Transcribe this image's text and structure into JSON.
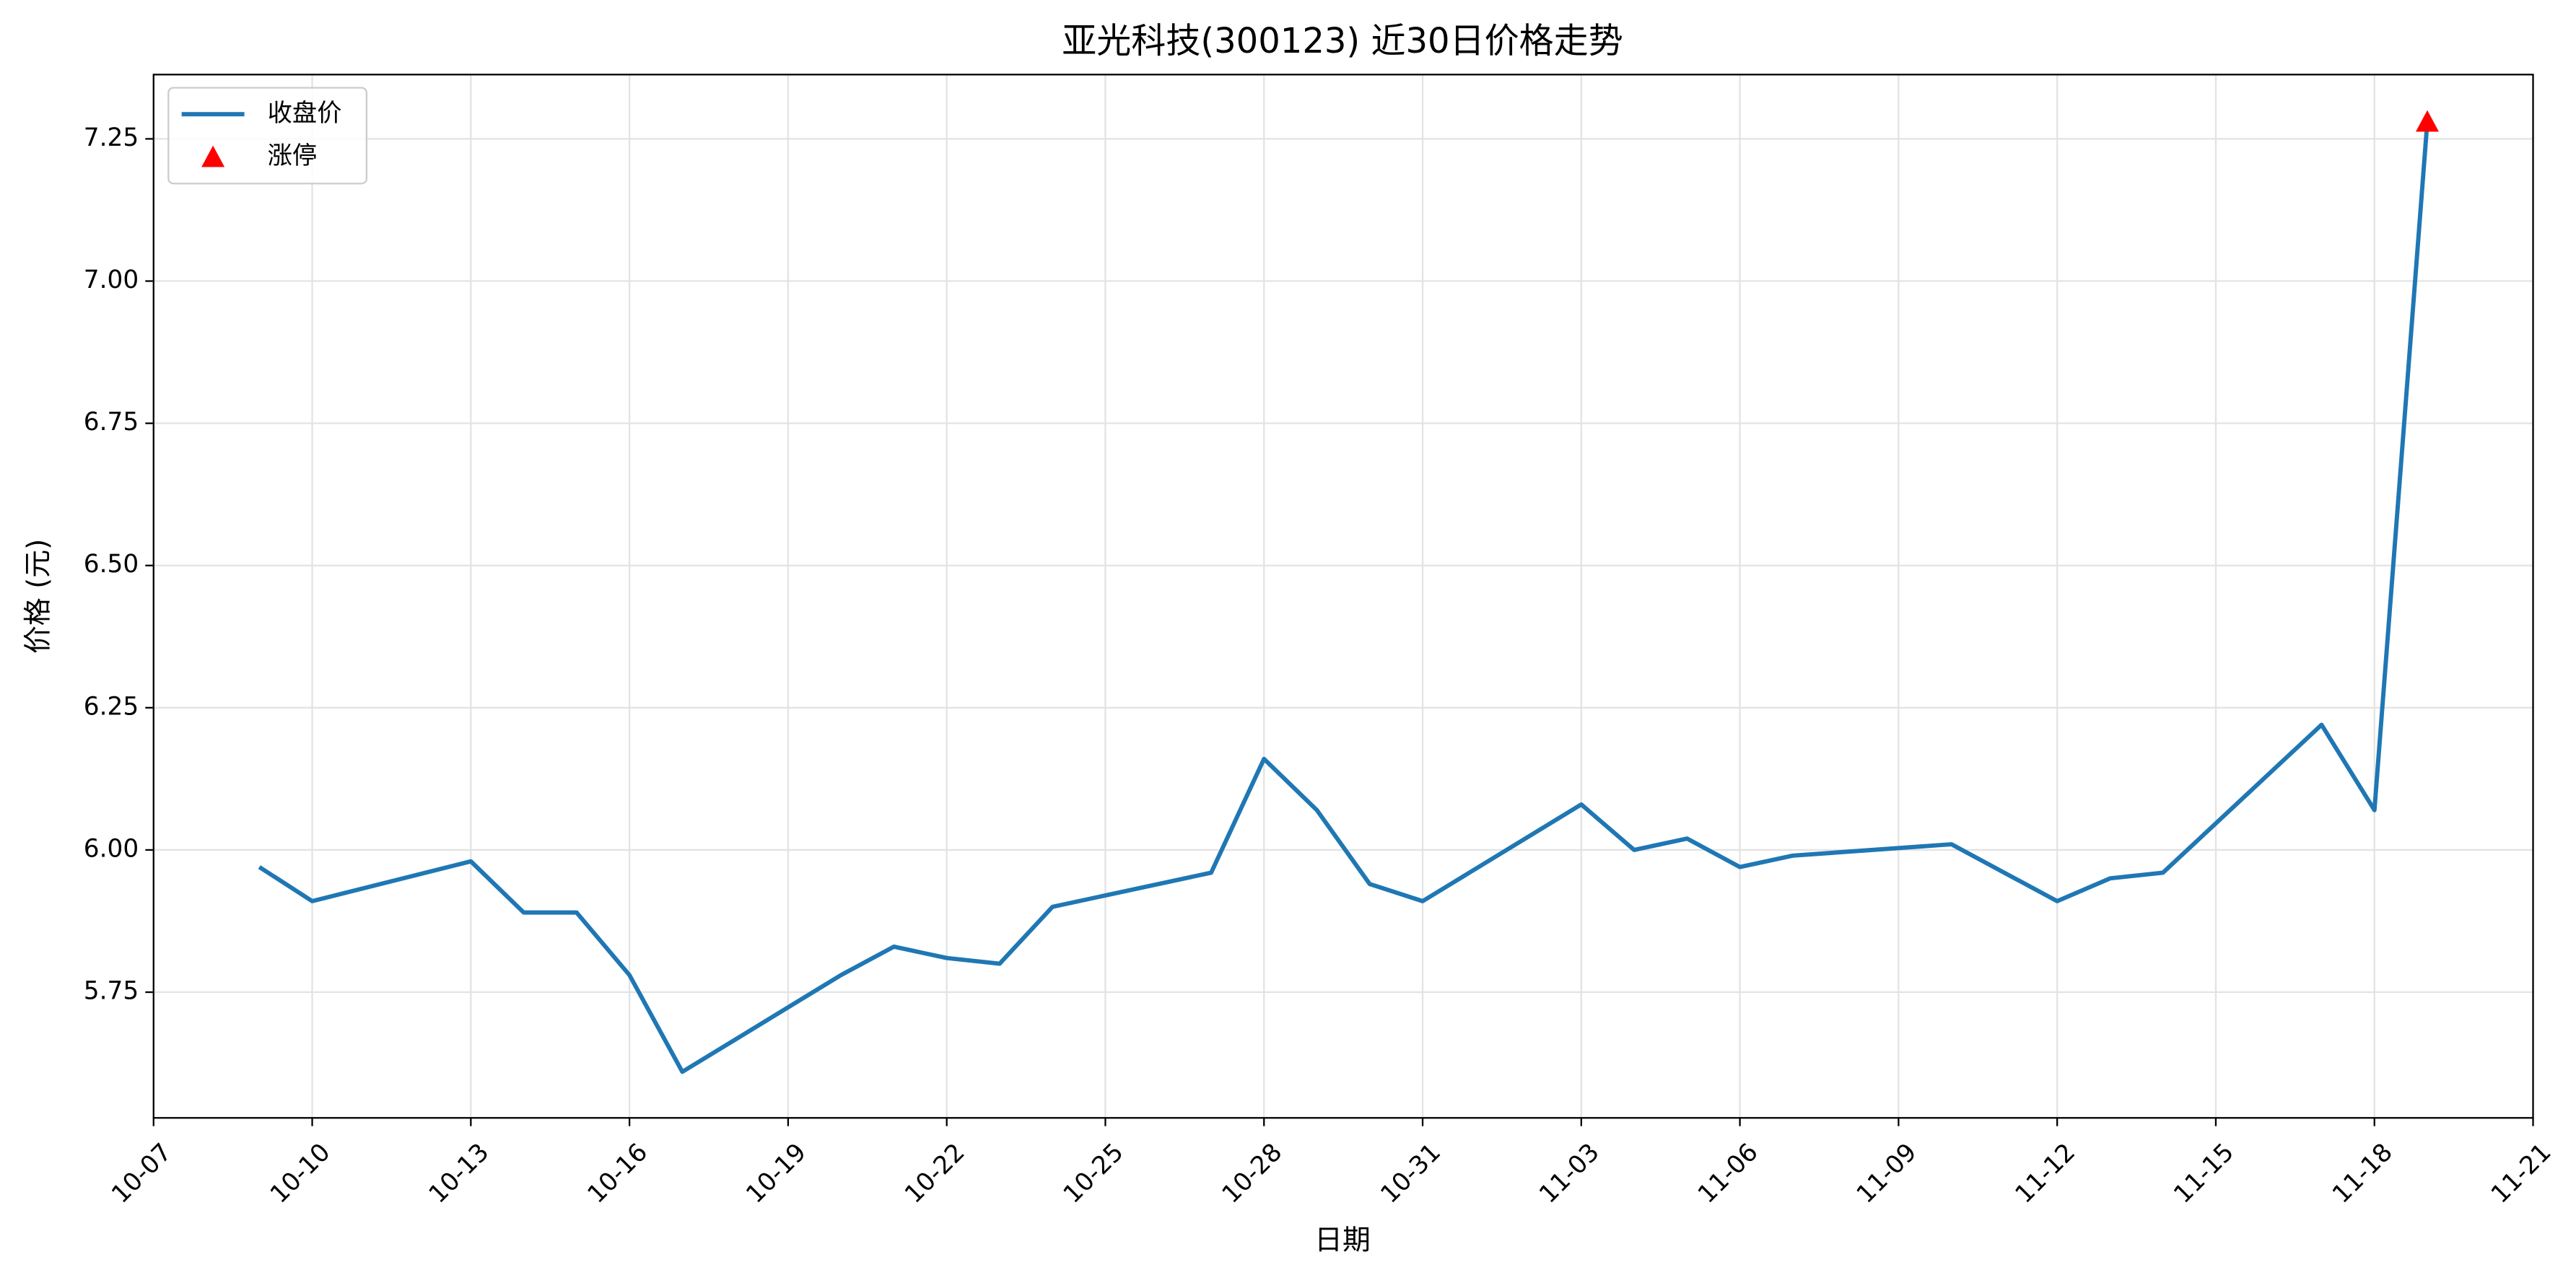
{
  "chart_data": {
    "type": "line",
    "title": "亚光科技(300123) 近30日价格走势",
    "xlabel": "日期",
    "ylabel": "价格 (元)",
    "x": [
      "10-09",
      "10-10",
      "10-13",
      "10-14",
      "10-15",
      "10-16",
      "10-17",
      "10-20",
      "10-21",
      "10-22",
      "10-23",
      "10-24",
      "10-27",
      "10-28",
      "10-29",
      "10-30",
      "10-31",
      "11-03",
      "11-04",
      "11-05",
      "11-06",
      "11-07",
      "11-10",
      "11-11",
      "11-12",
      "11-13",
      "11-14",
      "11-17",
      "11-18",
      "11-19"
    ],
    "series": [
      {
        "name": "收盘价",
        "type": "line",
        "color": "#1f77b4",
        "values": [
          5.97,
          5.91,
          5.98,
          5.89,
          5.89,
          5.78,
          5.61,
          5.78,
          5.83,
          5.81,
          5.8,
          5.9,
          5.96,
          6.16,
          6.07,
          5.94,
          5.91,
          6.08,
          6.0,
          6.02,
          5.97,
          5.99,
          6.01,
          5.96,
          5.91,
          5.95,
          5.96,
          6.22,
          6.07,
          7.28
        ]
      },
      {
        "name": "涨停",
        "type": "scatter",
        "color": "#ff0000",
        "x": [
          "11-19"
        ],
        "values": [
          7.28
        ]
      }
    ],
    "xlim": [
      "10-07",
      "11-21"
    ],
    "xticks": [
      "10-07",
      "10-10",
      "10-13",
      "10-16",
      "10-19",
      "10-22",
      "10-25",
      "10-28",
      "10-31",
      "11-03",
      "11-06",
      "11-09",
      "11-12",
      "11-15",
      "11-18",
      "11-21"
    ],
    "ylim": [
      5.529,
      7.363
    ],
    "yticks": [
      {
        "value": 5.75,
        "label": "5.75"
      },
      {
        "value": 6,
        "label": "6.00"
      },
      {
        "value": 6.25,
        "label": "6.25"
      },
      {
        "value": 6.5,
        "label": "6.50"
      },
      {
        "value": 6.75,
        "label": "6.75"
      },
      {
        "value": 7,
        "label": "7.00"
      },
      {
        "value": 7.25,
        "label": "7.25"
      }
    ],
    "grid": true,
    "legend": "upper left"
  }
}
